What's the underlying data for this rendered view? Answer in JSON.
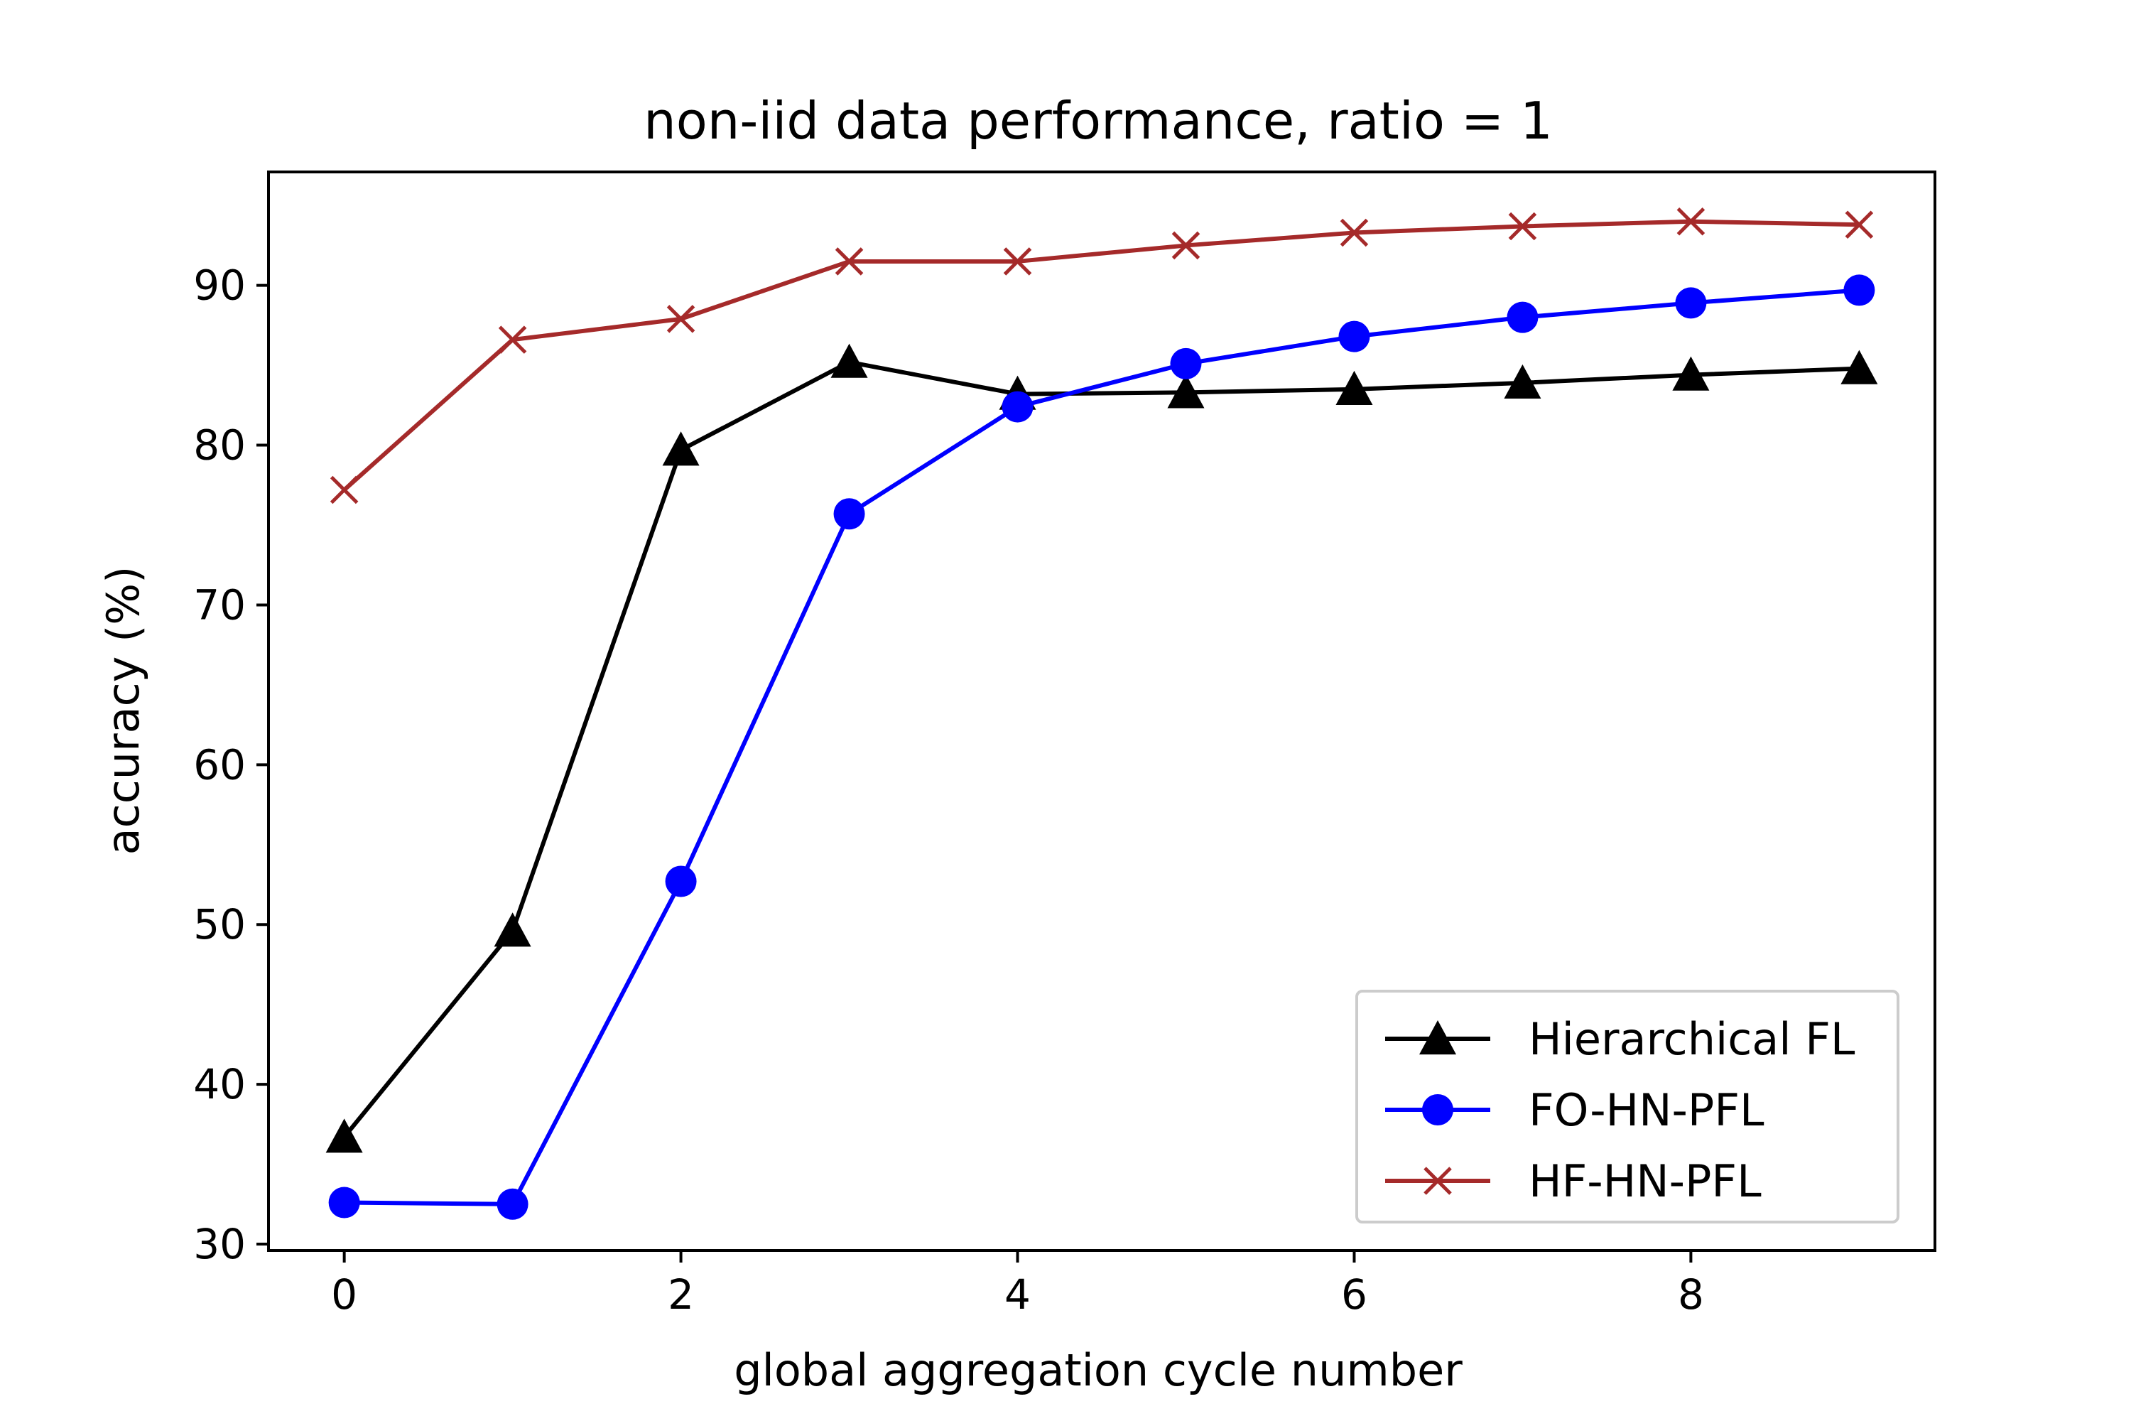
{
  "chart_data": {
    "type": "line",
    "title": "non-iid data performance, ratio = 1",
    "xlabel": "global aggregation cycle number",
    "ylabel": "accuracy (%)",
    "xlim": [
      -0.45,
      9.45
    ],
    "ylim": [
      29.6,
      97.1
    ],
    "xticks": [
      0,
      2,
      4,
      6,
      8
    ],
    "yticks": [
      30,
      40,
      50,
      60,
      70,
      80,
      90
    ],
    "grid": false,
    "legend_position": "lower-right",
    "x": [
      0,
      1,
      2,
      3,
      4,
      5,
      6,
      7,
      8,
      9
    ],
    "series": [
      {
        "name": "Hierarchical FL",
        "color": "#000000",
        "marker": "triangle",
        "values": [
          36.7,
          49.6,
          79.7,
          85.2,
          83.2,
          83.3,
          83.5,
          83.9,
          84.4,
          84.8
        ]
      },
      {
        "name": "FO-HN-PFL",
        "color": "#0000ff",
        "marker": "circle",
        "values": [
          32.6,
          32.5,
          52.7,
          75.7,
          82.4,
          85.1,
          86.8,
          88.0,
          88.9,
          89.7
        ]
      },
      {
        "name": "HF-HN-PFL",
        "color": "#a52a2a",
        "marker": "x",
        "values": [
          77.2,
          86.6,
          87.9,
          91.5,
          91.5,
          92.5,
          93.3,
          93.7,
          94.0,
          93.8
        ]
      }
    ]
  }
}
